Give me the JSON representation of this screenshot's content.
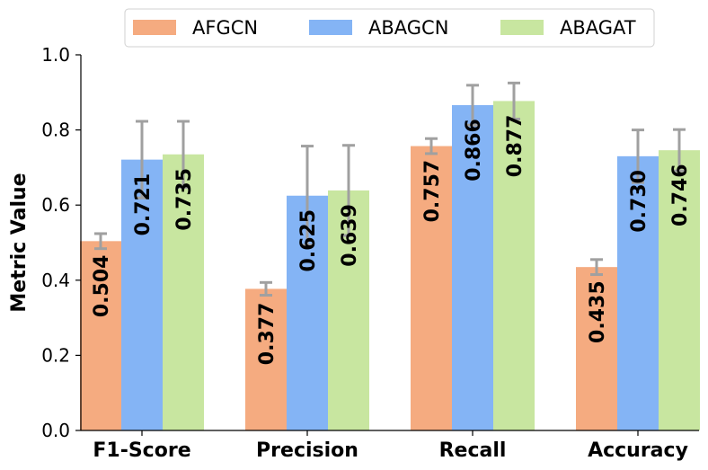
{
  "chart_data": {
    "type": "bar",
    "title": "",
    "xlabel": "",
    "ylabel": "Metric Value",
    "ylim": [
      0,
      1.0
    ],
    "yticks": [
      "0.0",
      "0.2",
      "0.4",
      "0.6",
      "0.8",
      "1.0"
    ],
    "categories": [
      "F1-Score",
      "Precision",
      "Recall",
      "Accuracy"
    ],
    "series": [
      {
        "name": "AFGCN",
        "color": "#f5ab80",
        "values": [
          0.504,
          0.377,
          0.757,
          0.435
        ],
        "labels": [
          "0.504",
          "0.377",
          "0.757",
          "0.435"
        ],
        "errors": [
          0.02,
          0.017,
          0.02,
          0.02
        ]
      },
      {
        "name": "ABAGCN",
        "color": "#84b4f5",
        "values": [
          0.721,
          0.625,
          0.866,
          0.73
        ],
        "labels": [
          "0.721",
          "0.625",
          "0.866",
          "0.730"
        ],
        "errors": [
          0.102,
          0.132,
          0.053,
          0.07
        ]
      },
      {
        "name": "ABAGAT",
        "color": "#c8e6a0",
        "values": [
          0.735,
          0.639,
          0.877,
          0.746
        ],
        "labels": [
          "0.735",
          "0.639",
          "0.877",
          "0.746"
        ],
        "errors": [
          0.088,
          0.12,
          0.048,
          0.055
        ]
      }
    ],
    "error_bar_color": "#a0a0a0",
    "legend_position": "top-center",
    "grid": false
  }
}
